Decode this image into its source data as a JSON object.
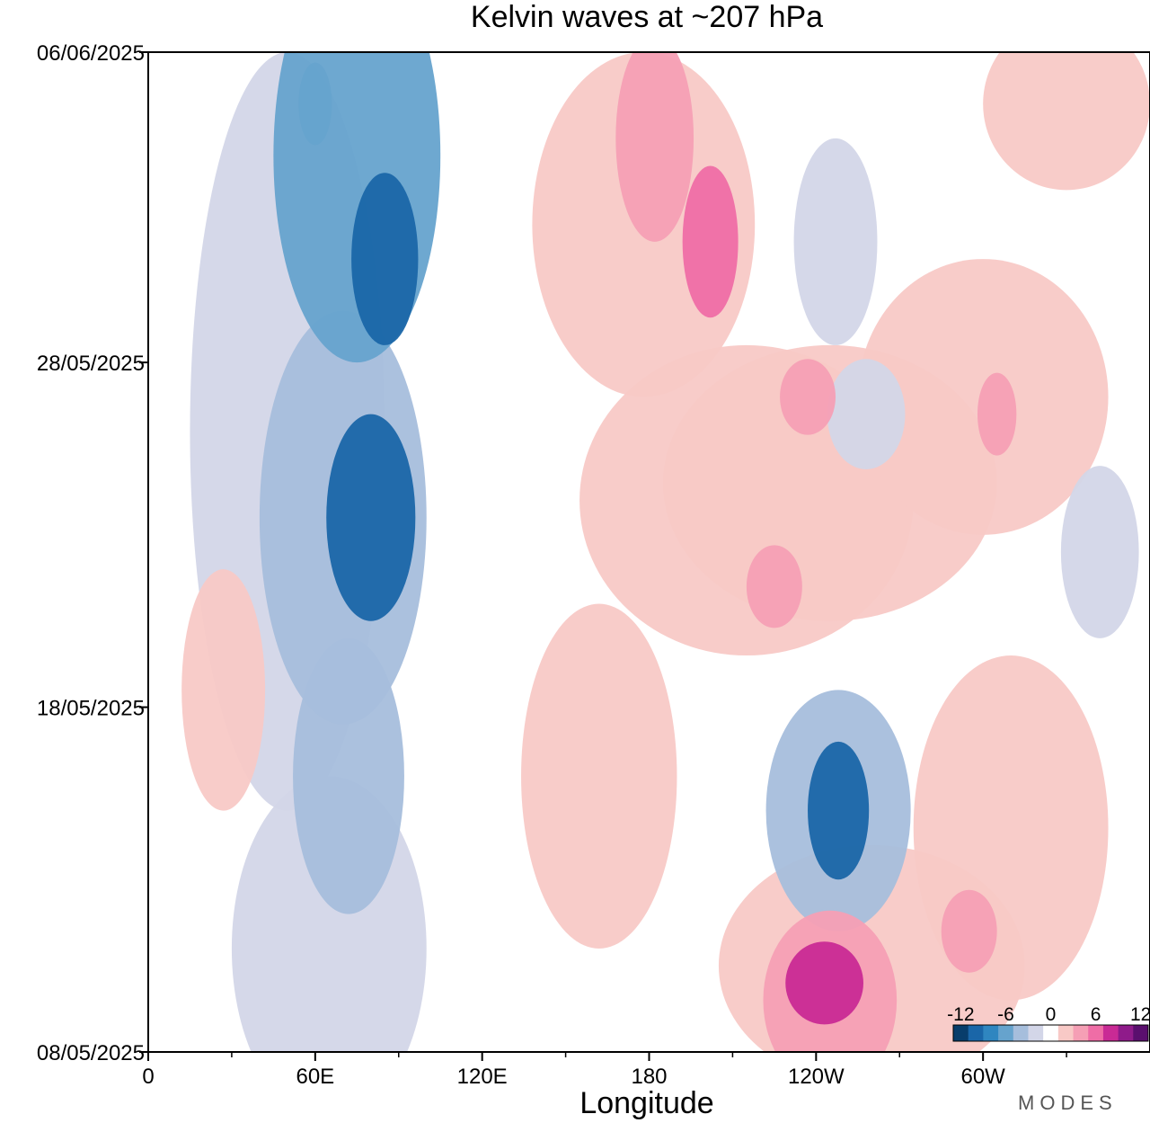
{
  "chart_data": {
    "type": "heatmap",
    "title": "Kelvin waves at ~207 hPa",
    "xlabel": "Longitude",
    "ylabel": "",
    "x_ticks": [
      "0",
      "60E",
      "120E",
      "180",
      "120W",
      "60W"
    ],
    "x_tick_values": [
      0,
      60,
      120,
      180,
      240,
      300
    ],
    "y_ticks": [
      "08/05/2025",
      "18/05/2025",
      "28/05/2025",
      "06/06/2025"
    ],
    "y_tick_values": [
      0,
      10,
      20,
      29
    ],
    "xlim": [
      0,
      360
    ],
    "ylim": [
      0,
      29
    ],
    "colorbar": {
      "labels": [
        "-12",
        "-6",
        "0",
        "6",
        "12"
      ],
      "levels": [
        -12,
        -10,
        -8,
        -6,
        -4,
        -2,
        2,
        4,
        6,
        8,
        10,
        12
      ],
      "colors": [
        "#083d6b",
        "#1a66a8",
        "#2f86c0",
        "#66a3cd",
        "#a6bedc",
        "#d3d6e8",
        "#ffffff",
        "#f8c9c6",
        "#f59fb5",
        "#ef6da6",
        "#c92a95",
        "#8f1b8a",
        "#5a0f6e"
      ],
      "placement": "bottom-right"
    },
    "anomalies": [
      {
        "lon": 75,
        "day": 26,
        "value": -7,
        "rx": 30,
        "ry": 6
      },
      {
        "lon": 85,
        "day": 23,
        "value": -11,
        "rx": 12,
        "ry": 2.5
      },
      {
        "lon": 60,
        "day": 27.5,
        "value": -6,
        "rx": 6,
        "ry": 1.2
      },
      {
        "lon": 80,
        "day": 15.5,
        "value": -10,
        "rx": 16,
        "ry": 3
      },
      {
        "lon": 70,
        "day": 15.5,
        "value": -5,
        "rx": 30,
        "ry": 6
      },
      {
        "lon": 72,
        "day": 8,
        "value": -4,
        "rx": 20,
        "ry": 4
      },
      {
        "lon": 65,
        "day": 3,
        "value": -2.5,
        "rx": 35,
        "ry": 5
      },
      {
        "lon": 50,
        "day": 18,
        "value": -2.5,
        "rx": 35,
        "ry": 11
      },
      {
        "lon": 248,
        "day": 7,
        "value": -10,
        "rx": 11,
        "ry": 2
      },
      {
        "lon": 248,
        "day": 7,
        "value": -5,
        "rx": 26,
        "ry": 3.5
      },
      {
        "lon": 247,
        "day": 23.5,
        "value": -3,
        "rx": 15,
        "ry": 3
      },
      {
        "lon": 258,
        "day": 18.5,
        "value": -3.5,
        "rx": 14,
        "ry": 1.6
      },
      {
        "lon": 342,
        "day": 14.5,
        "value": -3,
        "rx": 14,
        "ry": 2.5
      },
      {
        "lon": 202,
        "day": 23.5,
        "value": 7,
        "rx": 10,
        "ry": 2.2
      },
      {
        "lon": 182,
        "day": 26.5,
        "value": 6,
        "rx": 14,
        "ry": 3
      },
      {
        "lon": 178,
        "day": 24,
        "value": 2.8,
        "rx": 40,
        "ry": 5
      },
      {
        "lon": 225,
        "day": 13.5,
        "value": 6,
        "rx": 10,
        "ry": 1.2
      },
      {
        "lon": 215,
        "day": 16,
        "value": 2.8,
        "rx": 60,
        "ry": 4.5
      },
      {
        "lon": 237,
        "day": 19,
        "value": 6,
        "rx": 10,
        "ry": 1.1
      },
      {
        "lon": 245,
        "day": 16.5,
        "value": 2.8,
        "rx": 60,
        "ry": 4
      },
      {
        "lon": 305,
        "day": 18.5,
        "value": 6,
        "rx": 7,
        "ry": 1.2
      },
      {
        "lon": 300,
        "day": 19,
        "value": 2.8,
        "rx": 45,
        "ry": 4
      },
      {
        "lon": 27,
        "day": 10.5,
        "value": 2.8,
        "rx": 15,
        "ry": 3.5
      },
      {
        "lon": 162,
        "day": 8,
        "value": 2.8,
        "rx": 28,
        "ry": 5
      },
      {
        "lon": 243,
        "day": 2,
        "value": 9,
        "rx": 14,
        "ry": 1.2
      },
      {
        "lon": 245,
        "day": 1.5,
        "value": 6,
        "rx": 24,
        "ry": 2.6
      },
      {
        "lon": 260,
        "day": 2.5,
        "value": 2.8,
        "rx": 55,
        "ry": 3.5
      },
      {
        "lon": 295,
        "day": 3.5,
        "value": 6,
        "rx": 10,
        "ry": 1.2
      },
      {
        "lon": 310,
        "day": 6.5,
        "value": 2.8,
        "rx": 35,
        "ry": 5
      },
      {
        "lon": 330,
        "day": 27.5,
        "value": 2.8,
        "rx": 30,
        "ry": 2.5
      }
    ]
  },
  "brand": "MODES"
}
